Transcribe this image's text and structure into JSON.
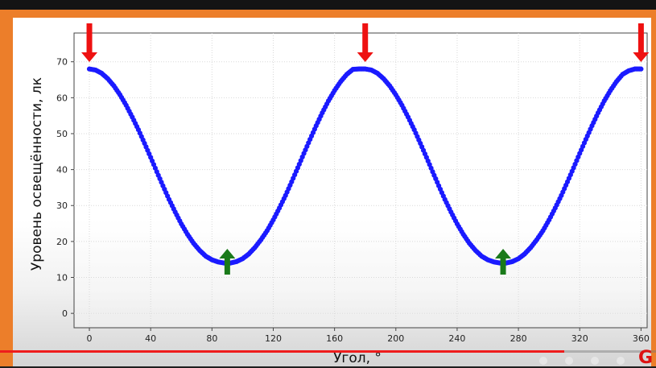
{
  "chart_data": {
    "type": "scatter",
    "title": "",
    "xlabel": "Угол, °",
    "ylabel": "Уровень освещённости, лк",
    "xlim": [
      -10,
      364
    ],
    "ylim": [
      -4,
      78
    ],
    "x_ticks": [
      0,
      40,
      80,
      120,
      160,
      200,
      240,
      280,
      320,
      360
    ],
    "y_ticks": [
      0,
      10,
      20,
      30,
      40,
      50,
      60,
      70
    ],
    "grid": true,
    "series": [
      {
        "color": "#1a1aff",
        "x": [
          0,
          4,
          8,
          12,
          16,
          20,
          24,
          28,
          32,
          36,
          40,
          44,
          48,
          52,
          56,
          60,
          64,
          68,
          72,
          76,
          80,
          84,
          88,
          92,
          96,
          100,
          104,
          108,
          112,
          116,
          120,
          124,
          128,
          132,
          136,
          140,
          144,
          148,
          152,
          156,
          160,
          164,
          168,
          172,
          176,
          180,
          184,
          188,
          192,
          196,
          200,
          204,
          208,
          212,
          216,
          220,
          224,
          228,
          232,
          236,
          240,
          244,
          248,
          252,
          256,
          260,
          264,
          268,
          272,
          276,
          280,
          284,
          288,
          292,
          296,
          300,
          304,
          308,
          312,
          316,
          320,
          324,
          328,
          332,
          336,
          340,
          344,
          348,
          352,
          356,
          360
        ],
        "y": [
          68.0,
          67.7,
          66.8,
          65.3,
          63.3,
          60.8,
          57.9,
          54.6,
          51.1,
          47.3,
          43.4,
          39.4,
          35.5,
          31.7,
          28.2,
          24.9,
          22.0,
          19.5,
          17.5,
          15.9,
          14.9,
          14.3,
          14.0,
          14.0,
          14.4,
          15.2,
          16.5,
          18.3,
          20.5,
          23.0,
          26.0,
          29.3,
          32.8,
          36.6,
          40.5,
          44.5,
          48.4,
          52.2,
          55.8,
          59.1,
          62.0,
          64.5,
          66.5,
          67.9,
          68.0,
          68.0,
          67.7,
          66.8,
          65.3,
          63.3,
          60.8,
          57.9,
          54.6,
          51.1,
          47.3,
          43.4,
          39.4,
          35.5,
          31.7,
          28.2,
          24.9,
          22.0,
          19.5,
          17.5,
          15.9,
          14.9,
          14.3,
          14.0,
          14.0,
          14.4,
          15.2,
          16.5,
          18.3,
          20.5,
          23.0,
          26.0,
          29.3,
          32.8,
          36.6,
          40.5,
          44.5,
          48.4,
          52.2,
          55.8,
          59.1,
          62.0,
          64.5,
          66.5,
          67.5,
          68.0,
          68.0
        ]
      }
    ],
    "markers": {
      "maxima_color": "#ee1111",
      "minima_color": "#1a7a1a",
      "maxima_x": [
        0,
        180,
        360
      ],
      "minima_x": [
        90,
        270
      ]
    }
  },
  "video": {
    "progress_fraction": 0.86
  }
}
